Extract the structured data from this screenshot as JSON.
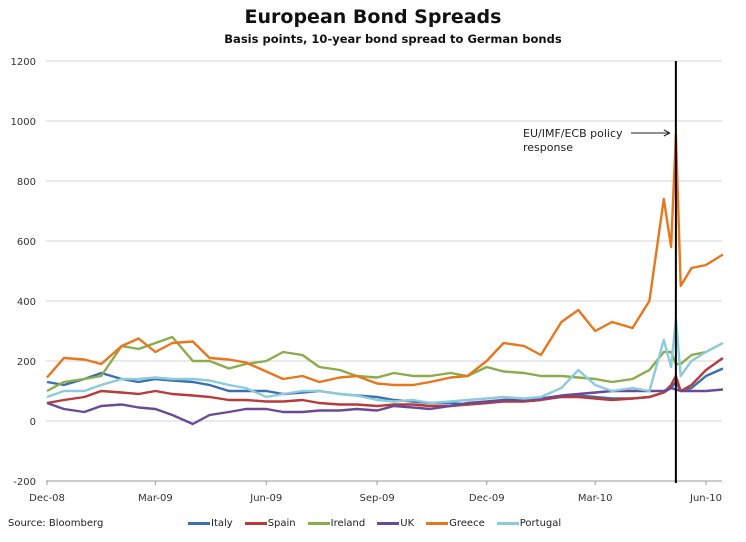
{
  "chart_data": {
    "type": "line",
    "title": "European Bond Spreads",
    "subtitle": "Basis points, 10-year bond spread to German bonds",
    "source": "Source: Bloomberg",
    "ylim": [
      -200,
      1200
    ],
    "yticks": [
      1200,
      1000,
      800,
      600,
      400,
      200,
      0,
      -200
    ],
    "xlim": [
      "2008-12-01",
      "2010-06-01"
    ],
    "xticks": [
      {
        "date": "2008-12-01",
        "label": "Dec-08"
      },
      {
        "date": "2009-03-01",
        "label": "Mar-09"
      },
      {
        "date": "2009-06-01",
        "label": "Jun-09"
      },
      {
        "date": "2009-09-01",
        "label": "Sep-09"
      },
      {
        "date": "2009-12-01",
        "label": "Dec-09"
      },
      {
        "date": "2010-03-01",
        "label": "Mar-10"
      },
      {
        "date": "2010-06-01",
        "label": "Jun-10"
      }
    ],
    "grid": true,
    "legend": "bottom",
    "annotation": {
      "text_line1": "EU/IMF/ECB policy",
      "text_line2": "response",
      "date": "2010-05-07"
    },
    "dates": [
      "2008-12-01",
      "2008-12-15",
      "2009-01-01",
      "2009-01-15",
      "2009-02-01",
      "2009-02-15",
      "2009-03-01",
      "2009-03-15",
      "2009-04-01",
      "2009-04-15",
      "2009-05-01",
      "2009-05-15",
      "2009-06-01",
      "2009-06-15",
      "2009-07-01",
      "2009-07-15",
      "2009-08-01",
      "2009-08-15",
      "2009-09-01",
      "2009-09-15",
      "2009-10-01",
      "2009-10-15",
      "2009-11-01",
      "2009-11-15",
      "2009-12-01",
      "2009-12-15",
      "2010-01-01",
      "2010-01-15",
      "2010-02-01",
      "2010-02-15",
      "2010-03-01",
      "2010-03-15",
      "2010-04-01",
      "2010-04-15",
      "2010-04-27",
      "2010-05-03",
      "2010-05-07",
      "2010-05-11",
      "2010-05-20",
      "2010-06-01",
      "2010-06-15"
    ],
    "series": [
      {
        "name": "Italy",
        "color": "#3a6fb0",
        "values": [
          130,
          120,
          140,
          160,
          140,
          130,
          140,
          135,
          130,
          120,
          100,
          100,
          100,
          90,
          95,
          100,
          90,
          85,
          80,
          70,
          65,
          60,
          60,
          55,
          60,
          70,
          70,
          75,
          80,
          85,
          80,
          75,
          75,
          80,
          95,
          110,
          130,
          100,
          110,
          150,
          175
        ]
      },
      {
        "name": "Spain",
        "color": "#b83a3a",
        "values": [
          60,
          70,
          80,
          100,
          95,
          90,
          100,
          90,
          85,
          80,
          70,
          70,
          65,
          65,
          70,
          60,
          55,
          55,
          50,
          55,
          55,
          50,
          50,
          55,
          60,
          65,
          65,
          70,
          80,
          80,
          75,
          70,
          75,
          80,
          95,
          120,
          150,
          100,
          120,
          170,
          210
        ]
      },
      {
        "name": "Ireland",
        "color": "#8aac4a",
        "values": [
          100,
          130,
          140,
          150,
          250,
          240,
          260,
          280,
          200,
          200,
          175,
          190,
          200,
          230,
          220,
          180,
          170,
          150,
          145,
          160,
          150,
          150,
          160,
          150,
          180,
          165,
          160,
          150,
          150,
          145,
          140,
          130,
          140,
          170,
          230,
          230,
          190,
          190,
          220,
          230,
          260
        ]
      },
      {
        "name": "UK",
        "color": "#6a4a96",
        "values": [
          60,
          40,
          30,
          50,
          55,
          45,
          40,
          20,
          -10,
          20,
          30,
          40,
          40,
          30,
          30,
          35,
          35,
          40,
          35,
          50,
          45,
          40,
          50,
          60,
          65,
          70,
          70,
          75,
          85,
          90,
          95,
          100,
          100,
          100,
          100,
          110,
          105,
          100,
          100,
          100,
          105
        ]
      },
      {
        "name": "Greece",
        "color": "#e8761c",
        "values": [
          145,
          210,
          205,
          190,
          250,
          275,
          230,
          260,
          265,
          210,
          205,
          195,
          165,
          140,
          150,
          130,
          145,
          150,
          125,
          120,
          120,
          130,
          145,
          150,
          200,
          260,
          250,
          220,
          330,
          370,
          300,
          330,
          310,
          400,
          740,
          580,
          955,
          450,
          510,
          520,
          555
        ]
      },
      {
        "name": "Portugal",
        "color": "#8ccbdc",
        "values": [
          80,
          100,
          100,
          120,
          140,
          140,
          145,
          140,
          140,
          135,
          120,
          110,
          80,
          90,
          100,
          100,
          90,
          85,
          70,
          65,
          70,
          60,
          65,
          70,
          75,
          80,
          75,
          80,
          110,
          170,
          120,
          100,
          110,
          100,
          270,
          180,
          340,
          150,
          200,
          230,
          260
        ]
      }
    ]
  }
}
